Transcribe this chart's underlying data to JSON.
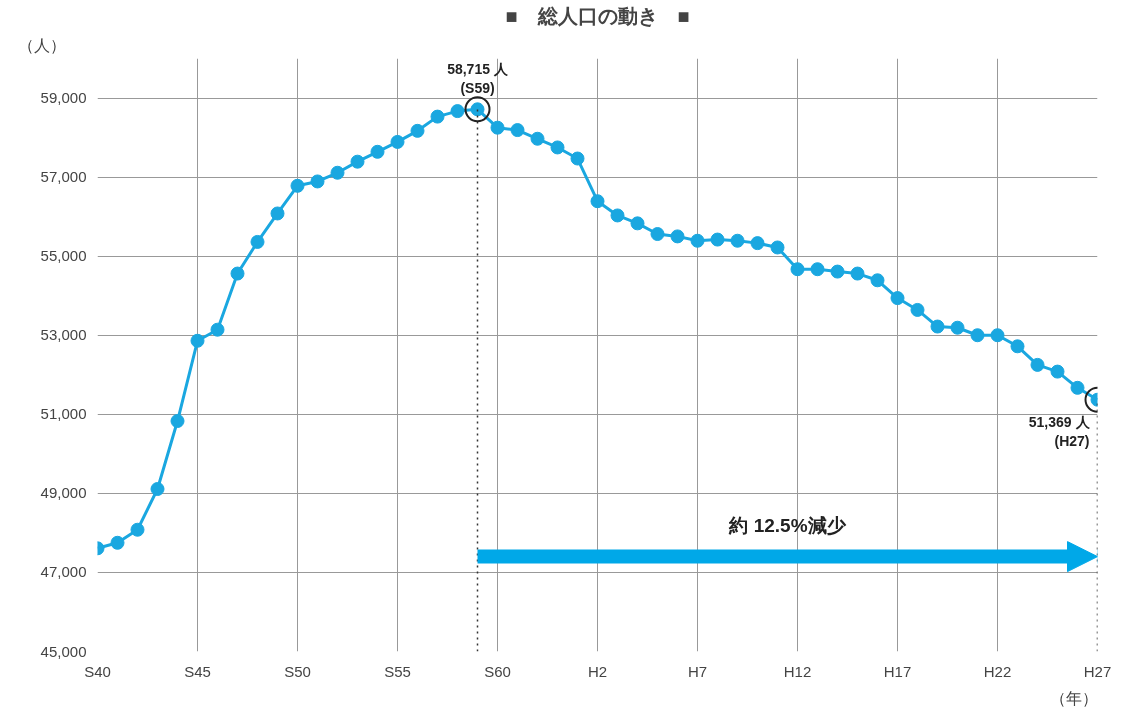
{
  "chart_data": {
    "type": "line",
    "title": "■　総人口の動き　■",
    "ylabel": "（人）",
    "xlabel": "（年）",
    "categories": [
      "S40",
      null,
      null,
      null,
      null,
      "S45",
      null,
      null,
      null,
      null,
      "S50",
      null,
      null,
      null,
      null,
      "S55",
      null,
      null,
      null,
      null,
      "S60",
      null,
      null,
      null,
      null,
      "H2",
      null,
      null,
      null,
      null,
      "H7",
      null,
      null,
      null,
      null,
      "H12",
      null,
      null,
      null,
      null,
      "H17",
      null,
      null,
      null,
      null,
      "H22",
      null,
      null,
      null,
      null,
      "H27"
    ],
    "series": [
      {
        "color": "#1aa7e0",
        "values": [
          47610,
          47750,
          48080,
          49110,
          50830,
          52860,
          53140,
          54560,
          55360,
          56080,
          56780,
          56890,
          57110,
          57390,
          57640,
          57890,
          58170,
          58530,
          58670,
          58715,
          58250,
          58190,
          57970,
          57750,
          57470,
          56390,
          56030,
          55830,
          55560,
          55500,
          55390,
          55420,
          55390,
          55330,
          55220,
          54670,
          54670,
          54610,
          54560,
          54390,
          53940,
          53640,
          53220,
          53190,
          53000,
          53000,
          52720,
          52250,
          52080,
          51670,
          51369
        ]
      }
    ],
    "ylim": [
      45000,
      60000
    ],
    "yticks": [
      {
        "value": 45000,
        "label": "45,000"
      },
      {
        "value": 47000,
        "label": "47,000"
      },
      {
        "value": 49000,
        "label": "49,000"
      },
      {
        "value": 51000,
        "label": "51,000"
      },
      {
        "value": 53000,
        "label": "53,000"
      },
      {
        "value": 55000,
        "label": "55,000"
      },
      {
        "value": 57000,
        "label": "57,000"
      },
      {
        "value": 59000,
        "label": "59,000"
      }
    ],
    "grid": true,
    "marker": "circle",
    "line_style": "solid",
    "annotations": [
      {
        "text": "58,715 人\n(S59)",
        "y": 58715
      },
      {
        "text": "51,369 人\n(H27)",
        "x": "H27",
        "y": 51369
      },
      "約 12.5%減少"
    ]
  }
}
